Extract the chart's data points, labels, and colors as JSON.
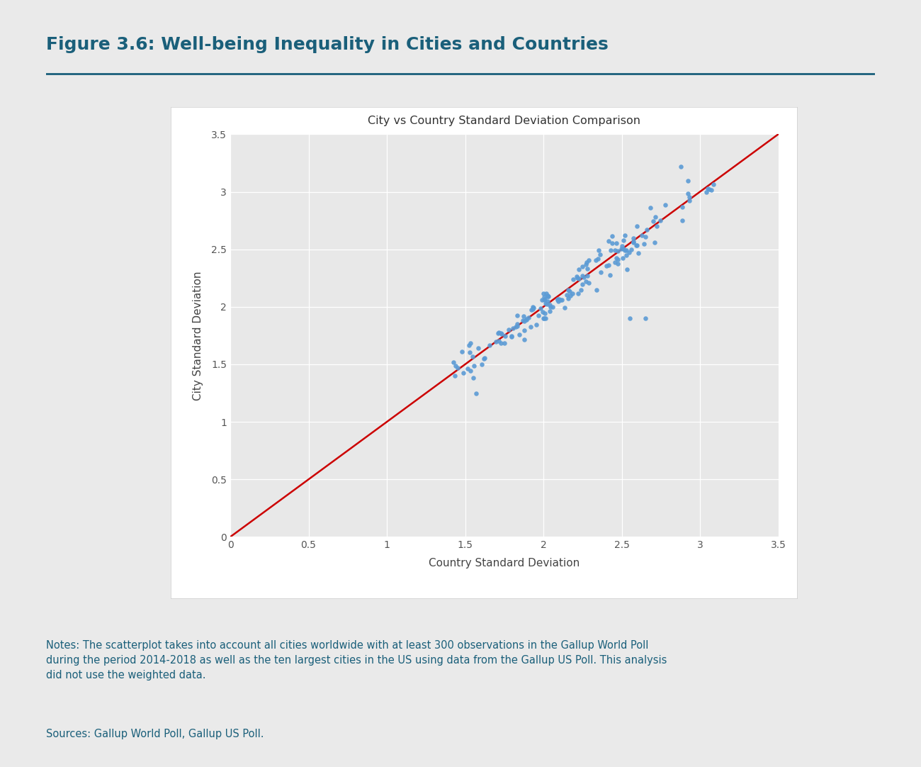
{
  "title": "Figure 3.6: Well-being Inequality in Cities and Countries",
  "chart_title": "City vs Country Standard Deviation Comparison",
  "xlabel": "Country Standard Deviation",
  "ylabel": "City Standard Deviation",
  "xlim": [
    0,
    3.5
  ],
  "ylim": [
    0,
    3.5
  ],
  "xticks": [
    0,
    0.5,
    1,
    1.5,
    2,
    2.5,
    3,
    3.5
  ],
  "yticks": [
    0,
    0.5,
    1,
    1.5,
    2,
    2.5,
    3,
    3.5
  ],
  "background_color": "#eaeaea",
  "plot_bg_color": "#e8e8e8",
  "chart_frame_color": "#ffffff",
  "title_color": "#1a5f7a",
  "dot_color": "#5b9bd5",
  "line_color": "#cc0000",
  "notes": "Notes: The scatterplot takes into account all cities worldwide with at least 300 observations in the Gallup World Poll\nduring the period 2014-2018 as well as the ten largest cities in the US using data from the Gallup US Poll. This analysis\ndid not use the weighted data.",
  "sources": "Sources: Gallup World Poll, Gallup US Poll.",
  "note_color": "#1a5f7a",
  "source_color": "#1a5f7a"
}
